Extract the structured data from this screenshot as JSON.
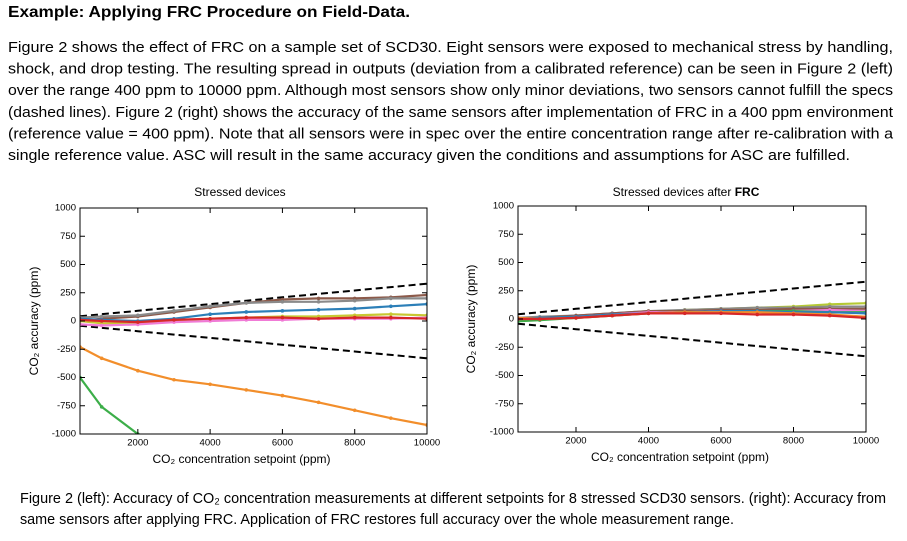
{
  "heading": "Example: Applying FRC Procedure on Field-Data.",
  "paragraph": [
    "Figure 2 shows the effect of FRC on a sample set of SCD30. Eight sensors were exposed to mechanical stress by handling,",
    "shock, and drop testing. The resulting spread in outputs (deviation from a calibrated reference) can be seen in Figure 2 (left)",
    "over the range 400 ppm to 10000 ppm. Although most sensors show only minor deviations, two sensors cannot fulfill the specs",
    "(dashed lines). Figure 2 (right) shows the accuracy of the same sensors after implementation of FRC in a 400 ppm environment",
    "(reference value = 400 ppm). Note that all sensors were in spec over the entire concentration range after re-calibration with a",
    "single reference value. ASC will result in the same accuracy given the conditions and assumptions for ASC are fulfilled."
  ],
  "chart_data": [
    {
      "type": "line",
      "title": "Stressed devices",
      "x_label": "CO₂ concentration setpoint (ppm)",
      "y_label": "CO₂ accuracy (ppm)",
      "x": [
        400,
        1000,
        2000,
        3000,
        4000,
        5000,
        6000,
        7000,
        8000,
        9000,
        10000
      ],
      "xlim": [
        400,
        10000
      ],
      "ylim": [
        -1000,
        1000
      ],
      "xticks": [
        2000,
        4000,
        6000,
        8000,
        10000
      ],
      "yticks": [
        -1000,
        -750,
        -500,
        -250,
        0,
        250,
        500,
        750,
        1000
      ],
      "series": [
        {
          "color": "#000000",
          "dashed": true,
          "values": [
            42,
            60,
            90,
            120,
            150,
            180,
            210,
            240,
            270,
            300,
            330
          ]
        },
        {
          "color": "#000000",
          "dashed": true,
          "values": [
            -42,
            -60,
            -90,
            -120,
            -150,
            -180,
            -210,
            -240,
            -270,
            -300,
            -330
          ]
        },
        {
          "color": "#f28e2b",
          "values": [
            -230,
            -330,
            -440,
            -520,
            -560,
            -610,
            -660,
            -720,
            -790,
            -860,
            -920
          ]
        },
        {
          "color": "#3cae49",
          "values": [
            -500,
            -760,
            -1000,
            null,
            null,
            null,
            null,
            null,
            null,
            null,
            null
          ]
        },
        {
          "color": "#8c5a4a",
          "values": [
            0,
            20,
            40,
            80,
            120,
            160,
            190,
            200,
            200,
            210,
            230
          ]
        },
        {
          "color": "#8a8a8a",
          "values": [
            30,
            40,
            50,
            90,
            130,
            160,
            170,
            170,
            180,
            200,
            200
          ]
        },
        {
          "color": "#2c7fb8",
          "values": [
            20,
            10,
            0,
            20,
            60,
            80,
            90,
            100,
            110,
            130,
            150
          ]
        },
        {
          "color": "#c8c832",
          "values": [
            0,
            -20,
            -20,
            0,
            20,
            30,
            40,
            40,
            50,
            60,
            50
          ]
        },
        {
          "color": "#f07bd6",
          "values": [
            -30,
            -40,
            -30,
            -10,
            0,
            10,
            10,
            20,
            20,
            20,
            30
          ]
        },
        {
          "color": "#d62728",
          "values": [
            10,
            0,
            -10,
            10,
            20,
            30,
            30,
            20,
            30,
            30,
            20
          ]
        }
      ]
    },
    {
      "type": "line",
      "title": "Stressed devices after",
      "title_bold": "FRC",
      "x_label": "CO₂ concentration setpoint (ppm)",
      "y_label": "CO₂ accuracy (ppm)",
      "x": [
        400,
        1000,
        2000,
        3000,
        4000,
        5000,
        6000,
        7000,
        8000,
        9000,
        10000
      ],
      "xlim": [
        400,
        10000
      ],
      "ylim": [
        -1000,
        1000
      ],
      "xticks": [
        2000,
        4000,
        6000,
        8000,
        10000
      ],
      "yticks": [
        -1000,
        -750,
        -500,
        -250,
        0,
        250,
        500,
        750,
        1000
      ],
      "series": [
        {
          "color": "#000000",
          "dashed": true,
          "values": [
            42,
            60,
            90,
            120,
            150,
            180,
            210,
            240,
            270,
            300,
            330
          ]
        },
        {
          "color": "#000000",
          "dashed": true,
          "values": [
            -42,
            -60,
            -90,
            -120,
            -150,
            -180,
            -210,
            -240,
            -270,
            -300,
            -330
          ]
        },
        {
          "color": "#b5c934",
          "values": [
            0,
            10,
            20,
            40,
            60,
            80,
            90,
            100,
            110,
            130,
            140
          ]
        },
        {
          "color": "#8a8a8a",
          "values": [
            10,
            20,
            30,
            50,
            70,
            80,
            90,
            100,
            100,
            110,
            110
          ]
        },
        {
          "color": "#8c5a4a",
          "values": [
            0,
            10,
            30,
            50,
            70,
            70,
            80,
            80,
            90,
            90,
            90
          ]
        },
        {
          "color": "#f07bd6",
          "values": [
            -10,
            0,
            20,
            40,
            60,
            60,
            70,
            70,
            70,
            80,
            70
          ]
        },
        {
          "color": "#3cae49",
          "values": [
            -20,
            -10,
            10,
            30,
            50,
            60,
            60,
            70,
            70,
            60,
            60
          ]
        },
        {
          "color": "#2c7fb8",
          "values": [
            0,
            10,
            20,
            40,
            50,
            60,
            70,
            70,
            60,
            60,
            50
          ]
        },
        {
          "color": "#f28e2b",
          "values": [
            10,
            0,
            10,
            30,
            50,
            60,
            60,
            60,
            50,
            40,
            20
          ]
        },
        {
          "color": "#d62728",
          "values": [
            0,
            0,
            10,
            30,
            50,
            50,
            50,
            40,
            40,
            30,
            10
          ]
        }
      ]
    }
  ],
  "caption": [
    "Figure 2 (left): Accuracy of CO₂ concentration measurements at different setpoints for 8 stressed SCD30 sensors. (right): Accuracy from",
    "same sensors after applying FRC. Application of FRC restores full accuracy over the whole measurement range."
  ]
}
